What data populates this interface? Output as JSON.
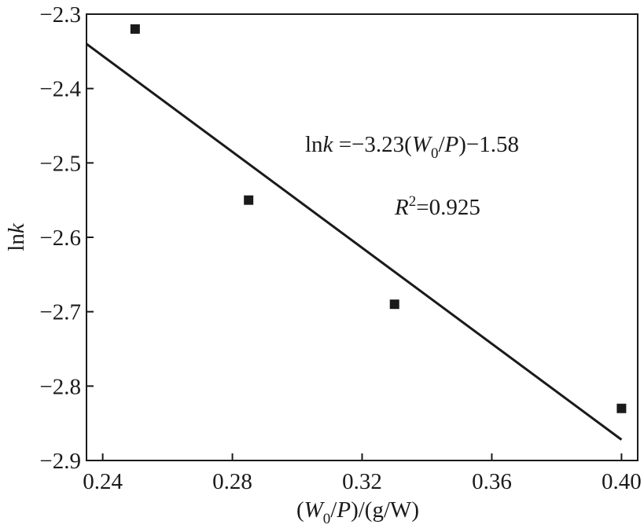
{
  "chart_data": {
    "type": "scatter",
    "xlabel": {
      "open": "(",
      "var": "W",
      "sub": "0",
      "slash": "/",
      "var2": "P",
      "rest": ")/(g/W)"
    },
    "ylabel": {
      "prefix": "ln",
      "var": "k"
    },
    "xlim": [
      0.235,
      0.405
    ],
    "ylim": [
      -2.9,
      -2.3
    ],
    "xticks": [
      0.24,
      0.28,
      0.32,
      0.36,
      0.4
    ],
    "xtick_labels": [
      "0.24",
      "0.28",
      "0.32",
      "0.36",
      "0.40"
    ],
    "yticks": [
      -2.3,
      -2.4,
      -2.5,
      -2.6,
      -2.7,
      -2.8,
      -2.9
    ],
    "ytick_labels": [
      "−2.3",
      "−2.4",
      "−2.5",
      "−2.6",
      "−2.7",
      "−2.8",
      "−2.9"
    ],
    "series": [
      {
        "marker": "square",
        "x": [
          0.25,
          0.285,
          0.33,
          0.4
        ],
        "y": [
          -2.32,
          -2.55,
          -2.69,
          -2.83
        ]
      }
    ],
    "fit_line": {
      "x": [
        0.235,
        0.4
      ],
      "y": [
        -2.34,
        -2.872
      ]
    },
    "annotations": {
      "equation": {
        "p1": "ln",
        "p2": "k",
        "p3": " =−3.23(",
        "p4": "W",
        "p5": "0",
        "p6": "/",
        "p7": "P",
        "p8": ")−1.58"
      },
      "r2": {
        "var": "R",
        "sup": "2",
        "rest": "=0.925"
      }
    },
    "grid": false,
    "colors": {
      "ink": "#1a1a1a",
      "background": "#ffffff"
    }
  }
}
